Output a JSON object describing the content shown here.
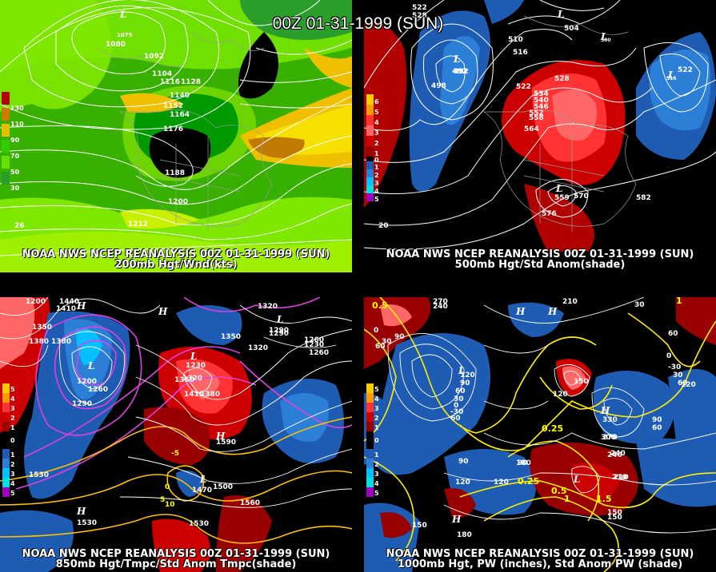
{
  "header": {
    "title": "00Z 01-31-1999 (SUN)"
  },
  "panels": [
    {
      "id": "p200",
      "line1": "NOAA NWS NCEP REANALYSIS 00Z 01-31-1999 (SUN)",
      "line2": "200mb Hgt/Wnd(kts)",
      "legend": [
        "130",
        "110",
        "90",
        "70",
        "50",
        "30"
      ],
      "legend_colors": [
        "#b30000",
        "#d07a00",
        "#e6c000",
        "#33cc00",
        "#66e000",
        "#2a9e2a"
      ],
      "contour_labels": [
        "1080",
        "1092",
        "1104",
        "1116",
        "1128",
        "1140",
        "1152",
        "1164",
        "1176",
        "1188",
        "1200",
        "1212"
      ],
      "low_label": "L",
      "low_value": "1075",
      "corner_value": "26"
    },
    {
      "id": "p500",
      "line1": "NOAA NWS NCEP REANALYSIS 00Z 01-31-1999 (SUN)",
      "line2": "500mb Hgt/Std Anom(shade)",
      "legend": [
        "6",
        "5",
        "4",
        "3",
        "2",
        "1",
        "0",
        "1",
        "2",
        "3",
        "4",
        "5"
      ],
      "legend_colors": [
        "#ffcc00",
        "#ff9900",
        "#ff3333",
        "#ff6666",
        "#cc0000",
        "#990000",
        "#000000",
        "#1e5bb3",
        "#2b7fd6",
        "#00c0ff",
        "#00e0e0",
        "#a000c0"
      ],
      "contour_labels": [
        "522",
        "528",
        "504",
        "510",
        "516",
        "492",
        "498",
        "522",
        "528",
        "534",
        "540",
        "546",
        "552",
        "558",
        "564",
        "570",
        "576",
        "582",
        "522"
      ],
      "lows": [
        "L",
        "L",
        "L",
        "L",
        "L"
      ],
      "low_values": [
        "492",
        "500",
        "516",
        "559"
      ],
      "corner_value": "20"
    },
    {
      "id": "p850",
      "line1": "NOAA NWS NCEP REANALYSIS 00Z 01-31-1999 (SUN)",
      "line2": "850mb Hgt/Tmpc/Std Anom Tmpc(shade)",
      "legend": [
        "5",
        "4",
        "3",
        "2",
        "1",
        "0",
        "1",
        "2",
        "3",
        "4",
        "5"
      ],
      "legend_colors": [
        "#ffcc00",
        "#ff9900",
        "#ff3333",
        "#cc0000",
        "#990000",
        "#000000",
        "#1e5bb3",
        "#2b7fd6",
        "#00c0ff",
        "#00e0e0",
        "#a000c0"
      ],
      "contour_labels": [
        "1440",
        "1410",
        "1200",
        "1350",
        "1380",
        "1380",
        "1320",
        "1290",
        "1260",
        "1350",
        "1320",
        "1290",
        "1230",
        "1260",
        "1260",
        "1230",
        "1200",
        "1290",
        "1320",
        "1410",
        "1380",
        "1350",
        "1530",
        "1500",
        "1470",
        "1560",
        "1530",
        "1590",
        "1530",
        "-5",
        "0",
        "5",
        "10"
      ],
      "lows": [
        "L",
        "L",
        "L",
        "L"
      ],
      "highs": [
        "H",
        "H",
        "H",
        "H"
      ]
    },
    {
      "id": "p1000",
      "line1": "NOAA NWS NCEP REANALYSIS 00Z 01-31-1999 (SUN)",
      "line2": "1000mb Hgt, PW (inches), Std Anom PW (shade)",
      "legend": [
        "5",
        "4",
        "3",
        "2",
        "1",
        "0",
        "1",
        "2",
        "3",
        "4",
        "5"
      ],
      "legend_colors": [
        "#ffcc00",
        "#ff9900",
        "#ff3333",
        "#cc0000",
        "#990000",
        "#000000",
        "#1e5bb3",
        "#2b7fd6",
        "#00c0ff",
        "#00e0e0",
        "#a000c0"
      ],
      "contour_labels": [
        "270",
        "240",
        "210",
        "30",
        "60",
        "90",
        "0",
        "30",
        "60",
        "120",
        "90",
        "60",
        "30",
        "0",
        "-30",
        "60",
        "90",
        "120",
        "30",
        "0",
        "-30",
        "60",
        "120",
        "150",
        "180",
        "210",
        "240",
        "270",
        "300",
        "330",
        "150",
        "120",
        "90",
        "60",
        "150",
        "180",
        "90",
        "120",
        "150",
        "210",
        "240"
      ],
      "pw_labels": [
        "0.5",
        "1",
        "0.25",
        "0.25",
        "0.5",
        "1",
        "1.5"
      ],
      "lows": [
        "L",
        "L"
      ],
      "highs": [
        "H",
        "H",
        "H",
        "H"
      ]
    }
  ]
}
